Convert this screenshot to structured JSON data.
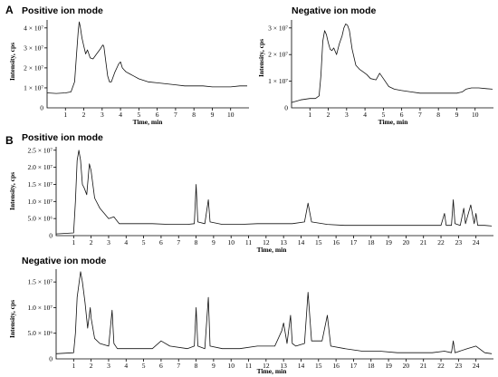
{
  "panel_labels": [
    "A",
    "B"
  ],
  "chart_data": [
    {
      "type": "line",
      "panel": "A",
      "title": "Positive ion mode",
      "xlabel": "Time, min",
      "ylabel": "Intensity, cps",
      "xlim": [
        0,
        11
      ],
      "ylim": [
        0,
        4.4
      ],
      "y_unit": "×10^7",
      "xticks": [
        1,
        2,
        3,
        4,
        5,
        6,
        7,
        8,
        9,
        10
      ],
      "yticks": [
        {
          "value": 1,
          "label": "1 × 10⁷"
        },
        {
          "value": 2,
          "label": "2 × 10⁷"
        },
        {
          "value": 3,
          "label": "3 × 10⁷"
        },
        {
          "value": 4,
          "label": "4 × 10⁷"
        }
      ],
      "y0_label": "0",
      "series": [
        {
          "x": [
            0,
            0.5,
            1.0,
            1.3,
            1.5,
            1.6,
            1.7,
            1.75,
            1.8,
            1.9,
            2.0,
            2.1,
            2.2,
            2.35,
            2.5,
            2.7,
            2.9,
            3.0,
            3.05,
            3.1,
            3.2,
            3.3,
            3.4,
            3.5,
            3.7,
            3.9,
            4.0,
            4.1,
            4.2,
            4.3,
            4.5,
            4.7,
            5.0,
            5.5,
            6.0,
            6.5,
            7.0,
            7.5,
            8.0,
            8.5,
            9.0,
            9.5,
            10.0,
            10.5,
            10.9
          ],
          "y": [
            0.75,
            0.72,
            0.75,
            0.8,
            1.3,
            2.6,
            3.9,
            4.3,
            4.1,
            3.5,
            3.1,
            2.7,
            2.9,
            2.5,
            2.45,
            2.7,
            2.95,
            3.1,
            3.15,
            3.05,
            2.3,
            1.6,
            1.3,
            1.3,
            1.8,
            2.2,
            2.3,
            2.0,
            1.9,
            1.8,
            1.7,
            1.6,
            1.45,
            1.3,
            1.25,
            1.2,
            1.15,
            1.1,
            1.1,
            1.1,
            1.05,
            1.05,
            1.05,
            1.1,
            1.1
          ]
        }
      ]
    },
    {
      "type": "line",
      "panel": "A",
      "title": "Negative ion mode",
      "xlabel": "Time, min",
      "ylabel": "Intensity, cps",
      "xlim": [
        0,
        11
      ],
      "ylim": [
        0,
        3.3
      ],
      "y_unit": "×10^7",
      "xticks": [
        1,
        2,
        3,
        4,
        5,
        6,
        7,
        8,
        9,
        10
      ],
      "yticks": [
        {
          "value": 1,
          "label": "1 × 10⁷"
        },
        {
          "value": 2,
          "label": "2 × 10⁷"
        },
        {
          "value": 3,
          "label": "3 × 10⁷"
        }
      ],
      "y0_label": "0",
      "series": [
        {
          "x": [
            0,
            0.5,
            1.0,
            1.3,
            1.5,
            1.6,
            1.7,
            1.8,
            1.9,
            2.0,
            2.1,
            2.2,
            2.3,
            2.45,
            2.6,
            2.75,
            2.85,
            2.95,
            3.05,
            3.15,
            3.3,
            3.5,
            3.7,
            3.9,
            4.1,
            4.3,
            4.6,
            4.8,
            5.0,
            5.3,
            5.6,
            6.0,
            6.5,
            7.0,
            7.5,
            8.0,
            8.5,
            9.0,
            9.3,
            9.5,
            9.8,
            10.2,
            10.6,
            10.95
          ],
          "y": [
            0.2,
            0.3,
            0.35,
            0.35,
            0.45,
            1.2,
            2.5,
            2.9,
            2.75,
            2.45,
            2.2,
            2.15,
            2.25,
            2.0,
            2.4,
            2.7,
            3.0,
            3.15,
            3.1,
            2.9,
            2.2,
            1.6,
            1.45,
            1.35,
            1.25,
            1.1,
            1.05,
            1.3,
            1.1,
            0.8,
            0.7,
            0.65,
            0.6,
            0.55,
            0.55,
            0.55,
            0.55,
            0.55,
            0.6,
            0.7,
            0.75,
            0.75,
            0.72,
            0.7
          ]
        }
      ]
    },
    {
      "type": "line",
      "panel": "B",
      "title": "Positive ion mode",
      "xlabel": "Time, min",
      "ylabel": "Intensity, cps",
      "xlim": [
        0,
        25
      ],
      "ylim": [
        0,
        2.6
      ],
      "y_unit": "×10^7",
      "xticks": [
        1,
        2,
        3,
        4,
        5,
        6,
        7,
        8,
        9,
        10,
        11,
        12,
        13,
        14,
        15,
        16,
        17,
        18,
        19,
        20,
        21,
        22,
        23,
        24
      ],
      "yticks": [
        {
          "value": 0.5,
          "label": "5.0 × 10⁶"
        },
        {
          "value": 1.0,
          "label": "1.0 × 10⁷"
        },
        {
          "value": 1.5,
          "label": "1.5 × 10⁷"
        },
        {
          "value": 2.0,
          "label": "2.0 × 10⁷"
        },
        {
          "value": 2.5,
          "label": "2.5 × 10⁷"
        }
      ],
      "y0_label": "0",
      "series": [
        {
          "x": [
            0,
            1.0,
            1.1,
            1.2,
            1.3,
            1.4,
            1.5,
            1.6,
            1.75,
            1.9,
            2.0,
            2.2,
            2.5,
            3.0,
            3.3,
            3.6,
            4.5,
            5.5,
            6.5,
            7.5,
            7.9,
            8.0,
            8.1,
            8.5,
            8.7,
            8.8,
            9.5,
            10.5,
            11.5,
            12.5,
            13.5,
            14.2,
            14.4,
            14.6,
            15.5,
            16.5,
            17.5,
            18.5,
            19.5,
            20.5,
            21.5,
            22.0,
            22.2,
            22.3,
            22.6,
            22.7,
            22.8,
            23.1,
            23.3,
            23.4,
            23.7,
            23.9,
            24.0,
            24.1,
            24.5,
            24.9
          ],
          "y": [
            0.05,
            0.08,
            1.0,
            2.2,
            2.5,
            2.2,
            1.5,
            1.4,
            1.2,
            2.1,
            1.9,
            1.1,
            0.8,
            0.5,
            0.55,
            0.35,
            0.35,
            0.35,
            0.33,
            0.33,
            0.35,
            1.5,
            0.4,
            0.35,
            1.05,
            0.4,
            0.33,
            0.33,
            0.35,
            0.35,
            0.35,
            0.4,
            0.95,
            0.4,
            0.33,
            0.3,
            0.3,
            0.3,
            0.3,
            0.3,
            0.3,
            0.3,
            0.65,
            0.3,
            0.3,
            1.05,
            0.35,
            0.3,
            0.8,
            0.35,
            0.9,
            0.35,
            0.65,
            0.3,
            0.3,
            0.28
          ]
        }
      ]
    },
    {
      "type": "line",
      "panel": "B",
      "title": "Negative ion mode",
      "xlabel": "Time, min",
      "ylabel": "Intensity, cps",
      "xlim": [
        0,
        25
      ],
      "ylim": [
        0,
        1.75
      ],
      "y_unit": "×10^7",
      "xticks": [
        1,
        2,
        3,
        4,
        5,
        6,
        7,
        8,
        9,
        10,
        11,
        12,
        13,
        14,
        15,
        16,
        17,
        18,
        19,
        20,
        21,
        22,
        23,
        24
      ],
      "yticks": [
        {
          "value": 0.5,
          "label": "5.0 × 10⁶"
        },
        {
          "value": 1.0,
          "label": "1.0 × 10⁷"
        },
        {
          "value": 1.5,
          "label": "1.5 × 10⁷"
        }
      ],
      "y0_label": "0",
      "series": [
        {
          "x": [
            0,
            1.0,
            1.1,
            1.2,
            1.3,
            1.4,
            1.5,
            1.65,
            1.8,
            1.95,
            2.0,
            2.2,
            2.5,
            3.0,
            3.2,
            3.3,
            3.5,
            4.5,
            5.5,
            6.0,
            6.5,
            7.5,
            7.9,
            8.0,
            8.1,
            8.5,
            8.7,
            8.8,
            9.5,
            10.5,
            11.5,
            12.5,
            12.9,
            13.0,
            13.2,
            13.4,
            13.5,
            13.7,
            14.2,
            14.4,
            14.6,
            15.2,
            15.5,
            15.7,
            16.5,
            17.5,
            18.5,
            19.5,
            20.5,
            21.5,
            22.2,
            22.6,
            22.7,
            22.8,
            23.5,
            24.0,
            24.5,
            24.9
          ],
          "y": [
            0.1,
            0.12,
            0.5,
            1.2,
            1.45,
            1.7,
            1.5,
            1.1,
            0.6,
            1.0,
            0.8,
            0.4,
            0.3,
            0.25,
            0.95,
            0.3,
            0.2,
            0.2,
            0.2,
            0.35,
            0.25,
            0.2,
            0.25,
            1.0,
            0.25,
            0.2,
            1.2,
            0.25,
            0.2,
            0.2,
            0.25,
            0.25,
            0.55,
            0.7,
            0.3,
            0.85,
            0.3,
            0.25,
            0.3,
            1.3,
            0.35,
            0.35,
            0.85,
            0.25,
            0.2,
            0.15,
            0.15,
            0.12,
            0.12,
            0.12,
            0.15,
            0.12,
            0.35,
            0.12,
            0.2,
            0.25,
            0.12,
            0.1
          ]
        }
      ]
    }
  ]
}
